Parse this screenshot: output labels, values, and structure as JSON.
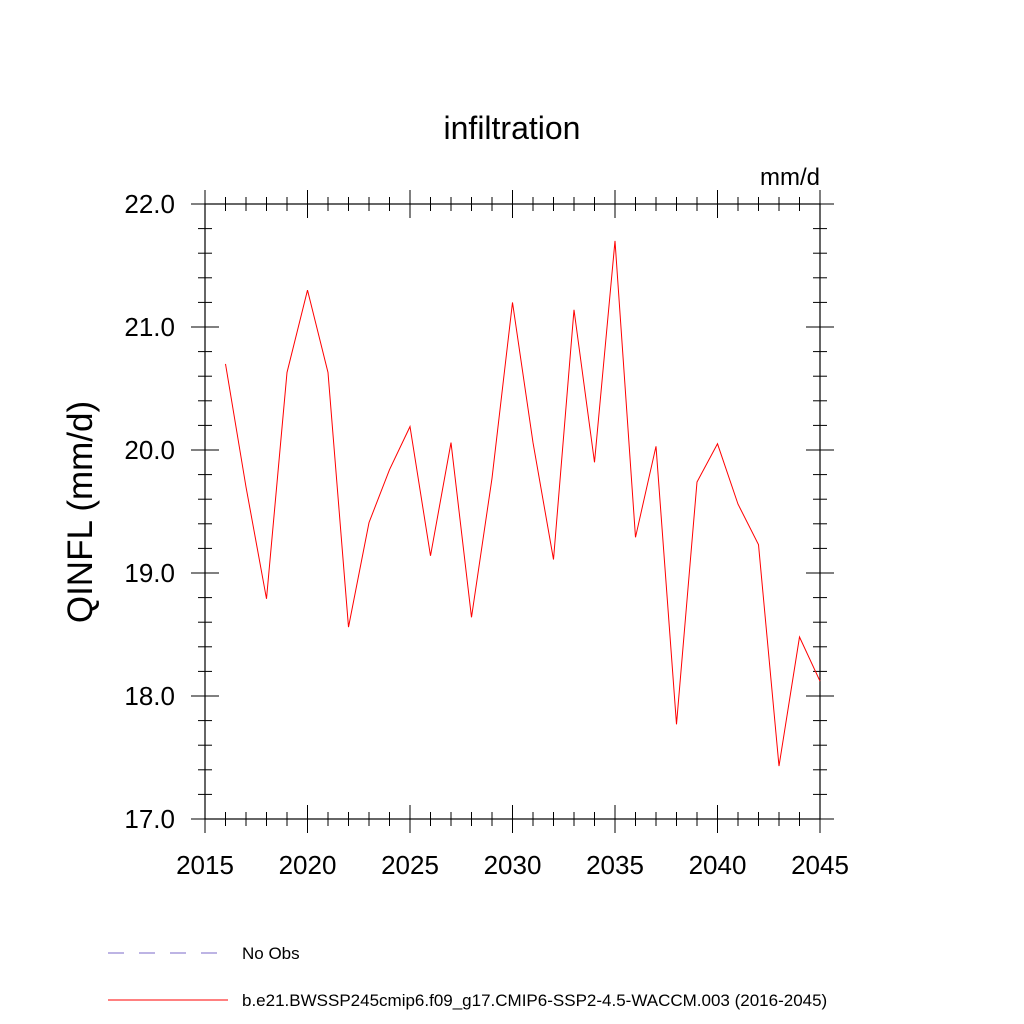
{
  "chart_data": {
    "type": "line",
    "title": "infiltration",
    "units": "mm/d",
    "ylabel": "QINFL  (mm/d)",
    "xlabel": "",
    "xlim": [
      2015,
      2045
    ],
    "ylim": [
      17.0,
      22.0
    ],
    "x_ticks": [
      "2015",
      "2020",
      "2025",
      "2030",
      "2035",
      "2040",
      "2045"
    ],
    "y_ticks": [
      "17.0",
      "18.0",
      "19.0",
      "20.0",
      "21.0",
      "22.0"
    ],
    "series": [
      {
        "name": "b.e21.BWSSP245cmip6.f09_g17.CMIP6-SSP2-4.5-WACCM.003 (2016-2045)",
        "color": "#ff0000",
        "x": [
          2016,
          2017,
          2018,
          2019,
          2020,
          2021,
          2022,
          2023,
          2024,
          2025,
          2026,
          2027,
          2028,
          2029,
          2030,
          2031,
          2032,
          2033,
          2034,
          2035,
          2036,
          2037,
          2038,
          2039,
          2040,
          2041,
          2042,
          2043,
          2044,
          2045
        ],
        "values": [
          20.7,
          19.7,
          18.79,
          20.63,
          21.3,
          20.63,
          18.56,
          19.41,
          19.84,
          20.19,
          19.14,
          20.06,
          18.64,
          19.77,
          21.2,
          20.06,
          19.11,
          21.14,
          19.9,
          21.7,
          19.29,
          20.03,
          17.77,
          19.74,
          20.05,
          19.56,
          19.23,
          17.43,
          18.48,
          18.12
        ]
      }
    ],
    "legend": [
      {
        "label": "No Obs",
        "style": "dashed",
        "color": "#7b68c8"
      },
      {
        "label": "b.e21.BWSSP245cmip6.f09_g17.CMIP6-SSP2-4.5-WACCM.003 (2016-2045)",
        "style": "solid",
        "color": "#ff0000"
      }
    ]
  }
}
